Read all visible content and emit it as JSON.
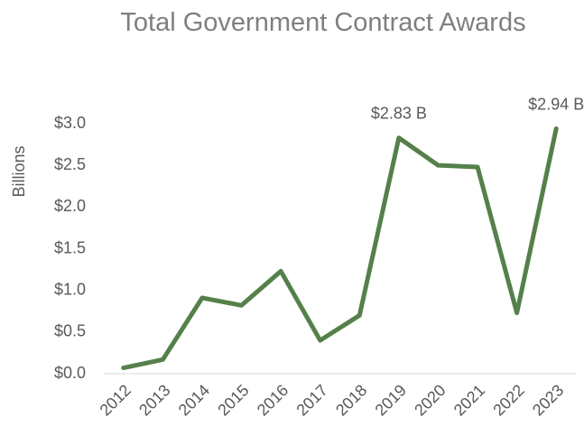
{
  "chart_data": {
    "type": "line",
    "title": "Total Government Contract Awards",
    "y_label": "Billions",
    "categories": [
      "2012",
      "2013",
      "2014",
      "2015",
      "2016",
      "2017",
      "2018",
      "2019",
      "2020",
      "2021",
      "2022",
      "2023"
    ],
    "series": [
      {
        "name": "Total Government Contract Awards",
        "color": "#55804a",
        "values": [
          0.07,
          0.17,
          0.91,
          0.82,
          1.23,
          0.4,
          0.7,
          2.83,
          2.5,
          2.48,
          0.73,
          2.94
        ],
        "value_labels": [
          null,
          null,
          null,
          null,
          null,
          null,
          null,
          "$2.83 B",
          null,
          null,
          null,
          "$2.94 B"
        ]
      }
    ],
    "ylim": [
      0,
      3
    ],
    "yticks": [
      {
        "value": 0,
        "label": "$0.0"
      },
      {
        "value": 0.5,
        "label": "$0.5"
      },
      {
        "value": 1,
        "label": "$1.0"
      },
      {
        "value": 1.5,
        "label": "$1.5"
      },
      {
        "value": 2,
        "label": "$2.0"
      },
      {
        "value": 2.5,
        "label": "$2.5"
      },
      {
        "value": 3,
        "label": "$3.0"
      }
    ],
    "grid": false
  }
}
